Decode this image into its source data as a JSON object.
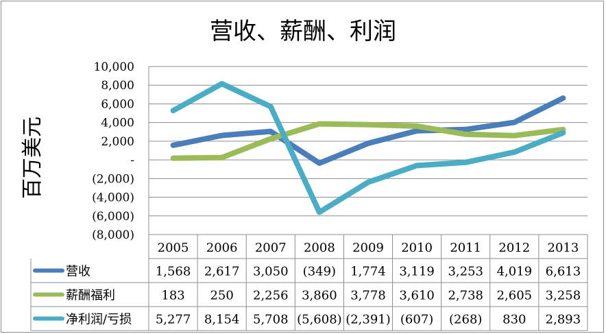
{
  "chart_data": {
    "type": "line",
    "title": "营收、薪酬、利润",
    "ylabel": "百万美元",
    "xlabel": "",
    "ylim": [
      -8000,
      10000
    ],
    "y_ticks": [
      10000,
      8000,
      6000,
      4000,
      2000,
      0,
      -2000,
      -4000,
      -6000,
      -8000
    ],
    "y_tick_labels": [
      "10,000",
      "8,000",
      "6,000",
      "4,000",
      "2,000",
      "-",
      "(2,000)",
      "(4,000)",
      "(6,000)",
      "(8,000)"
    ],
    "grid": true,
    "legend": "data-table-below",
    "categories": [
      "2005",
      "2006",
      "2007",
      "2008",
      "2009",
      "2010",
      "2011",
      "2012",
      "2013"
    ],
    "series": [
      {
        "name": "营收",
        "color": "#4a7ebb",
        "values": [
          1568,
          2617,
          3050,
          -349,
          1774,
          3119,
          3253,
          4019,
          6613
        ],
        "labels": [
          "1,568",
          "2,617",
          "3,050",
          "(349)",
          "1,774",
          "3,119",
          "3,253",
          "4,019",
          "6,613"
        ]
      },
      {
        "name": "薪酬福利",
        "color": "#9bbb59",
        "values": [
          183,
          250,
          2256,
          3860,
          3778,
          3610,
          2738,
          2605,
          3258
        ],
        "labels": [
          "183",
          "250",
          "2,256",
          "3,860",
          "3,778",
          "3,610",
          "2,738",
          "2,605",
          "3,258"
        ]
      },
      {
        "name": "净利润/亏损",
        "color": "#4bacc6",
        "values": [
          5277,
          8154,
          5708,
          -5608,
          -2391,
          -607,
          -268,
          830,
          2893
        ],
        "labels": [
          "5,277",
          "8,154",
          "5,708",
          "(5,608)",
          "(2,391)",
          "(607)",
          "(268)",
          "830",
          "2,893"
        ]
      }
    ]
  }
}
